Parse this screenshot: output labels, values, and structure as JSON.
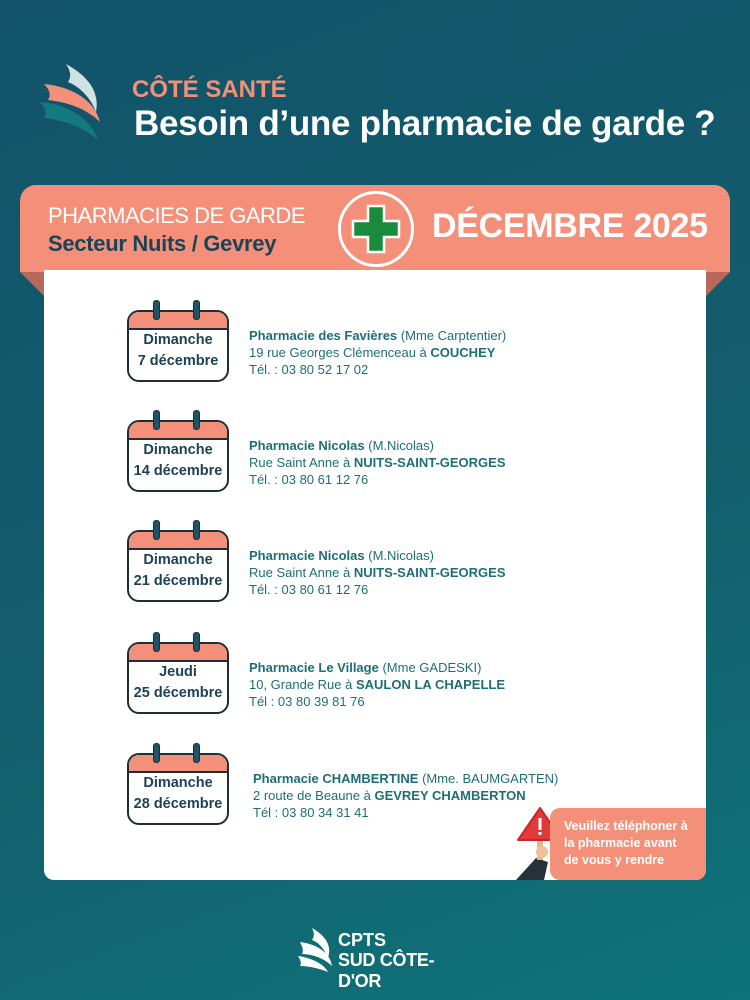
{
  "header": {
    "kicker": "CÔTÉ SANTÉ",
    "title": "Besoin d’une pharmacie de garde ?"
  },
  "banner": {
    "line1": "PHARMACIES DE GARDE",
    "line2": "Secteur Nuits / Gevrey",
    "month": "DÉCEMBRE 2025"
  },
  "entries": [
    {
      "day": "Dimanche",
      "date": "7 décembre",
      "name": "Pharmacie des Favières",
      "owner": "(Mme Carptentier)",
      "address": "19 rue Georges Clémenceau à",
      "city": "COUCHEY",
      "phone": "Tél. : 03 80 52 17 02"
    },
    {
      "day": "Dimanche",
      "date": "14 décembre",
      "name": "Pharmacie Nicolas",
      "owner": "(M.Nicolas)",
      "address": "Rue Saint Anne à",
      "city": "NUITS-SAINT-GEORGES",
      "phone": "Tél. : 03 80 61 12 76"
    },
    {
      "day": "Dimanche",
      "date": "21 décembre",
      "name": "Pharmacie Nicolas",
      "owner": "(M.Nicolas)",
      "address": "Rue Saint Anne à",
      "city": "NUITS-SAINT-GEORGES",
      "phone": "Tél. : 03 80 61 12 76"
    },
    {
      "day": "Jeudi",
      "date": "25 décembre",
      "name": "Pharmacie Le Village",
      "owner": "(Mme GADESKI)",
      "address": "10, Grande Rue à",
      "city": "SAULON LA CHAPELLE",
      "phone": "Tél : 03 80 39 81 76"
    },
    {
      "day": "Dimanche",
      "date": "28 décembre",
      "name": "Pharmacie CHAMBERTINE",
      "owner": "(Mme. BAUMGARTEN)",
      "address": "2 route de Beaune à",
      "city": "GEVREY CHAMBERTON",
      "phone": "Tél : 03 80 34 31 41"
    }
  ],
  "alert": {
    "line1": "Veuillez téléphoner à",
    "line2": "la pharmacie avant",
    "line3": "de vous y rendre"
  },
  "footer": {
    "line1": "CPTS",
    "line2": "SUD CÔTE-D'OR"
  },
  "colors": {
    "background": "#135e6c",
    "accent": "#f4907a",
    "navy": "#1d4256",
    "teal_text": "#1e6e78",
    "cross": "#1a8a3c"
  }
}
